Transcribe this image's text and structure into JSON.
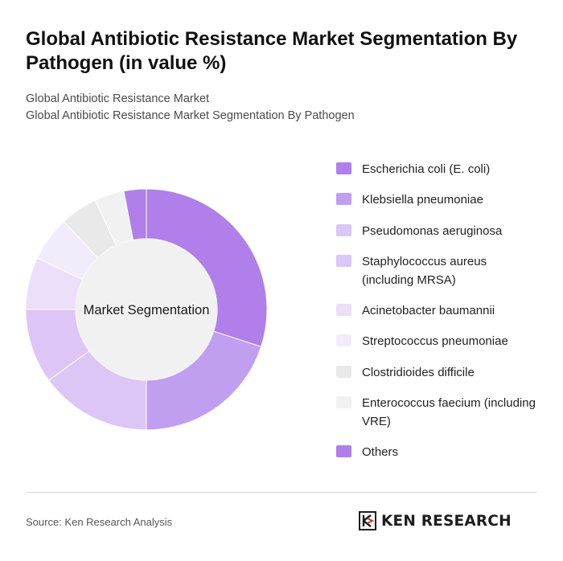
{
  "header": {
    "title": "Global Antibiotic Resistance Market Segmentation By Pathogen (in value %)",
    "subtitle_line1": "Global Antibiotic Resistance Market",
    "subtitle_line2": "Global Antibiotic Resistance Market Segmentation By Pathogen"
  },
  "chart_data": {
    "type": "pie",
    "variant": "donut",
    "center_label": "Market Segmentation",
    "categories": [
      "Escherichia coli (E. coli)",
      "Klebsiella pneumoniae",
      "Pseudomonas aeruginosa",
      "Staphylococcus aureus (including MRSA)",
      "Acinetobacter baumannii",
      "Streptococcus pneumoniae",
      "Clostridioides difficile",
      "Enterococcus faecium (including VRE)",
      "Others"
    ],
    "values": [
      30,
      20,
      15,
      10,
      7,
      6,
      5,
      4,
      3
    ],
    "colors": [
      "#b07fea",
      "#c09ef0",
      "#dbc6f5",
      "#ddc6f6",
      "#ecdff9",
      "#f2ebfb",
      "#e9e9e9",
      "#f1f1f1",
      "#b07fea"
    ],
    "legend_position": "right"
  },
  "footer": {
    "source": "Source: Ken Research Analysis",
    "logo_text": "KEN RESEARCH"
  }
}
